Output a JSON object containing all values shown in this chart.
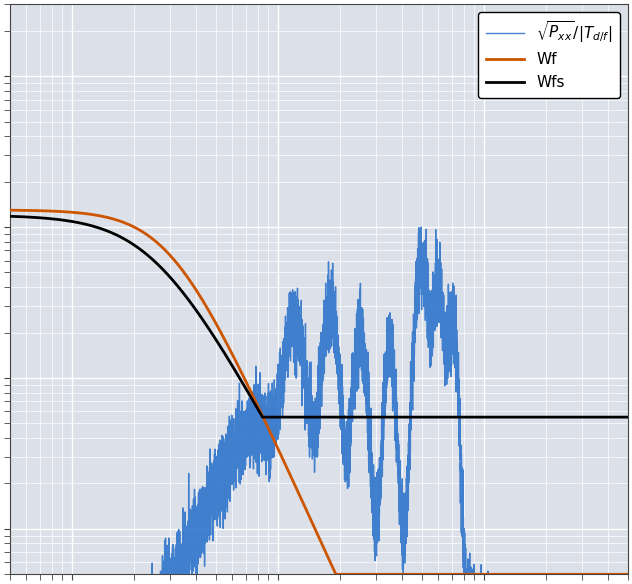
{
  "background_color": "#dce0e8",
  "grid_color": "#ffffff",
  "blue_color": "#3377cc",
  "orange_color": "#cc5500",
  "black_color": "#000000",
  "legend_entries": [
    "$\\sqrt{P_{xx}}/|T_{d/f}|$",
    "Wf",
    "Wfs"
  ],
  "figsize": [
    6.32,
    5.84
  ],
  "dpi": 100,
  "xlim": [
    0.5,
    500
  ],
  "ylim": [
    0.0005,
    3.0
  ],
  "fig_bg": "#ffffff"
}
